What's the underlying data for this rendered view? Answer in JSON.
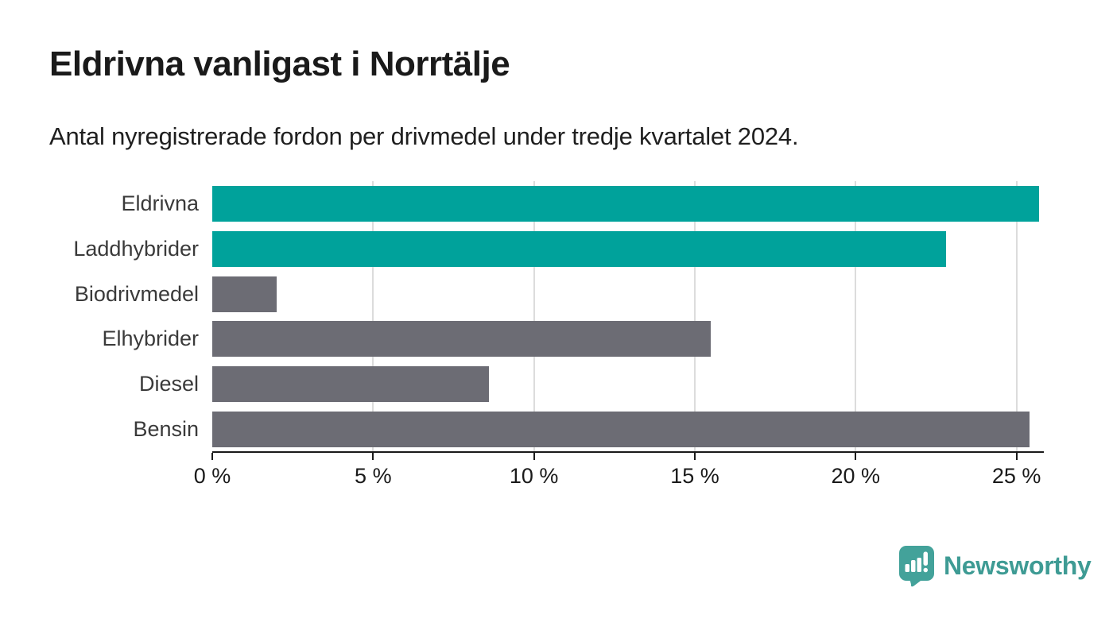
{
  "header": {
    "title": "Eldrivna vanligast i Norrtälje",
    "subtitle": "Antal nyregistrerade fordon per drivmedel under tredje kvartalet 2024."
  },
  "chart_data": {
    "type": "bar",
    "orientation": "horizontal",
    "title": "Eldrivna vanligast i Norrtälje",
    "subtitle": "Antal nyregistrerade fordon per drivmedel under tredje kvartalet 2024.",
    "categories": [
      "Eldrivna",
      "Laddhybrider",
      "Biodrivmedel",
      "Elhybrider",
      "Diesel",
      "Bensin"
    ],
    "values": [
      25.7,
      22.8,
      2.0,
      15.5,
      8.6,
      25.4
    ],
    "unit": "%",
    "xlim": [
      0,
      25.8
    ],
    "x_ticks": [
      0,
      5,
      10,
      15,
      20,
      25
    ],
    "x_tick_labels": [
      "0 %",
      "5 %",
      "10 %",
      "15 %",
      "20 %",
      "25 %"
    ],
    "bar_colors": [
      "#00a29b",
      "#00a29b",
      "#6c6c74",
      "#6c6c74",
      "#6c6c74",
      "#6c6c74"
    ],
    "highlight_color": "#00a29b",
    "base_color": "#6c6c74",
    "grid": true,
    "legend": false,
    "xlabel": "",
    "ylabel": ""
  },
  "branding": {
    "name": "Newsworthy",
    "logo_icon": "newsworthy-speech-bubble-bar-chart-icon",
    "color": "#3e9b94",
    "icon_color": "#43a29a"
  },
  "colors": {
    "background": "#ffffff",
    "text": "#1a1a1a",
    "category_label": "#3a3a3a",
    "gridline": "#dcdcdc",
    "axis": "#1a1a1a"
  }
}
